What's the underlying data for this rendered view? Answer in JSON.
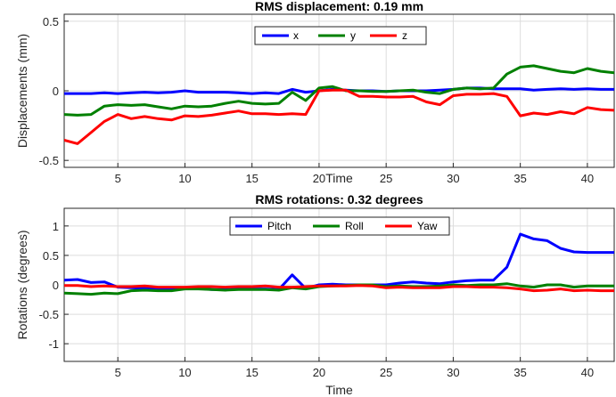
{
  "chart_data": [
    {
      "type": "line",
      "title": "RMS displacement: 0.19 mm",
      "xlabel": "Time",
      "ylabel": "Displacements (mm)",
      "xlim": [
        1,
        42
      ],
      "ylim": [
        -0.55,
        0.55
      ],
      "xticks": [
        5,
        10,
        15,
        20,
        25,
        30,
        35,
        40
      ],
      "yticks": [
        -0.5,
        0,
        0.5
      ],
      "ytick_labels": [
        "-0.5",
        "0",
        "0.5"
      ],
      "grid": true,
      "legend": {
        "placement": "top-center",
        "orientation": "horizontal"
      },
      "x": [
        1,
        2,
        3,
        4,
        5,
        6,
        7,
        8,
        9,
        10,
        11,
        12,
        13,
        14,
        15,
        16,
        17,
        18,
        19,
        20,
        21,
        22,
        23,
        24,
        25,
        26,
        27,
        28,
        29,
        30,
        31,
        32,
        33,
        34,
        35,
        36,
        37,
        38,
        39,
        40,
        41,
        42
      ],
      "series": [
        {
          "name": "x",
          "color": "#0000ff",
          "values": [
            -0.02,
            -0.02,
            -0.02,
            -0.015,
            -0.02,
            -0.015,
            -0.01,
            -0.015,
            -0.01,
            0,
            -0.01,
            -0.01,
            -0.01,
            -0.015,
            -0.02,
            -0.015,
            -0.02,
            0.01,
            -0.01,
            0,
            0.01,
            0.005,
            0.0,
            0.0,
            -0.005,
            0.0,
            0.0,
            0.0,
            0.005,
            0.01,
            0.02,
            0.02,
            0.015,
            0.015,
            0.015,
            0.005,
            0.01,
            0.015,
            0.01,
            0.015,
            0.01,
            0.01
          ]
        },
        {
          "name": "y",
          "color": "#008000",
          "values": [
            -0.17,
            -0.175,
            -0.17,
            -0.11,
            -0.1,
            -0.105,
            -0.1,
            -0.115,
            -0.13,
            -0.11,
            -0.115,
            -0.11,
            -0.09,
            -0.075,
            -0.09,
            -0.095,
            -0.09,
            -0.01,
            -0.07,
            0.02,
            0.03,
            0.0,
            0.0,
            -0.005,
            -0.005,
            0.0,
            0.005,
            -0.01,
            -0.02,
            0.01,
            0.02,
            0.015,
            0.02,
            0.12,
            0.17,
            0.18,
            0.16,
            0.14,
            0.13,
            0.16,
            0.14,
            0.13
          ]
        },
        {
          "name": "z",
          "color": "#ff0000",
          "values": [
            -0.355,
            -0.38,
            -0.3,
            -0.22,
            -0.17,
            -0.2,
            -0.185,
            -0.2,
            -0.21,
            -0.18,
            -0.185,
            -0.175,
            -0.16,
            -0.145,
            -0.165,
            -0.165,
            -0.17,
            -0.165,
            -0.17,
            0.0,
            0.005,
            0.005,
            -0.04,
            -0.04,
            -0.045,
            -0.045,
            -0.04,
            -0.08,
            -0.1,
            -0.035,
            -0.025,
            -0.025,
            -0.02,
            -0.04,
            -0.18,
            -0.16,
            -0.17,
            -0.15,
            -0.165,
            -0.12,
            -0.135,
            -0.14
          ]
        }
      ]
    },
    {
      "type": "line",
      "title": "RMS rotations: 0.32 degrees",
      "xlabel": "Time",
      "ylabel": "Rotations (degrees)",
      "xlim": [
        1,
        42
      ],
      "ylim": [
        -1.3,
        1.3
      ],
      "xticks": [
        5,
        10,
        15,
        20,
        25,
        30,
        35,
        40
      ],
      "yticks": [
        -1,
        -0.5,
        0,
        0.5,
        1
      ],
      "ytick_labels": [
        "-1",
        "-0.5",
        "0",
        "0.5",
        "1"
      ],
      "grid": true,
      "legend": {
        "placement": "top-center",
        "orientation": "horizontal"
      },
      "x": [
        1,
        2,
        3,
        4,
        5,
        6,
        7,
        8,
        9,
        10,
        11,
        12,
        13,
        14,
        15,
        16,
        17,
        18,
        19,
        20,
        21,
        22,
        23,
        24,
        25,
        26,
        27,
        28,
        29,
        30,
        31,
        32,
        33,
        34,
        35,
        36,
        37,
        38,
        39,
        40,
        41,
        42
      ],
      "series": [
        {
          "name": "Pitch",
          "color": "#0000ff",
          "values": [
            0.08,
            0.09,
            0.04,
            0.05,
            -0.04,
            -0.05,
            -0.06,
            -0.08,
            -0.07,
            -0.05,
            -0.06,
            -0.08,
            -0.08,
            -0.07,
            -0.07,
            -0.07,
            -0.08,
            0.17,
            -0.06,
            0.0,
            0.01,
            0.0,
            0.0,
            0.0,
            0.0,
            0.03,
            0.05,
            0.03,
            0.02,
            0.05,
            0.07,
            0.08,
            0.08,
            0.3,
            0.86,
            0.78,
            0.75,
            0.62,
            0.56,
            0.55,
            0.55,
            0.55
          ]
        },
        {
          "name": "Roll",
          "color": "#008000",
          "values": [
            -0.14,
            -0.15,
            -0.16,
            -0.14,
            -0.15,
            -0.1,
            -0.09,
            -0.1,
            -0.1,
            -0.07,
            -0.07,
            -0.08,
            -0.09,
            -0.08,
            -0.08,
            -0.08,
            -0.09,
            -0.05,
            -0.07,
            -0.03,
            -0.02,
            -0.01,
            0.0,
            0.0,
            -0.03,
            -0.02,
            -0.03,
            -0.03,
            -0.02,
            0.0,
            -0.01,
            0.0,
            0.0,
            0.02,
            -0.02,
            -0.04,
            0.0,
            0.0,
            -0.04,
            -0.02,
            -0.02,
            -0.02
          ]
        },
        {
          "name": "Yaw",
          "color": "#ff0000",
          "values": [
            -0.01,
            -0.01,
            -0.03,
            -0.02,
            -0.03,
            -0.03,
            -0.02,
            -0.04,
            -0.04,
            -0.04,
            -0.03,
            -0.03,
            -0.04,
            -0.03,
            -0.03,
            -0.02,
            -0.04,
            -0.04,
            -0.03,
            -0.02,
            -0.02,
            -0.02,
            -0.01,
            -0.02,
            -0.05,
            -0.04,
            -0.05,
            -0.05,
            -0.05,
            -0.03,
            -0.03,
            -0.04,
            -0.04,
            -0.05,
            -0.07,
            -0.1,
            -0.09,
            -0.07,
            -0.1,
            -0.09,
            -0.1,
            -0.1
          ]
        }
      ]
    }
  ]
}
